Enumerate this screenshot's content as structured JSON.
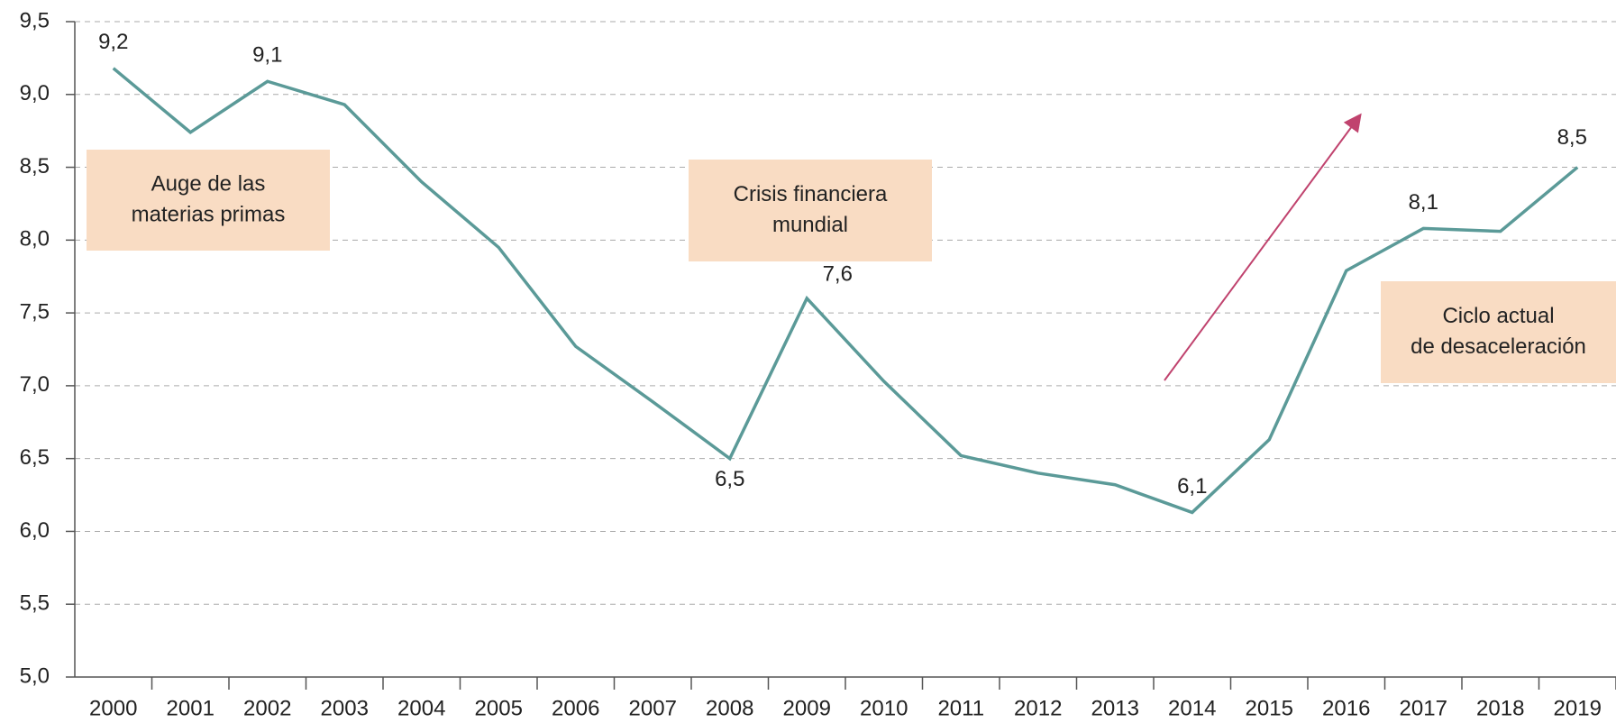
{
  "chart_data": {
    "type": "line",
    "categories": [
      "2000",
      "2001",
      "2002",
      "2003",
      "2004",
      "2005",
      "2006",
      "2007",
      "2008",
      "2009",
      "2010",
      "2011",
      "2012",
      "2013",
      "2014",
      "2015",
      "2016",
      "2017",
      "2018",
      "2019"
    ],
    "series": [
      {
        "color": "#5b9a98",
        "values": [
          9.18,
          8.74,
          9.09,
          8.93,
          8.4,
          7.95,
          7.27,
          6.89,
          6.5,
          7.6,
          7.03,
          6.52,
          6.4,
          6.32,
          6.13,
          6.63,
          7.79,
          8.08,
          8.06,
          8.5
        ],
        "value_labels": [
          "9,2",
          null,
          "9,1",
          null,
          null,
          null,
          null,
          null,
          "6,5",
          "7,6",
          null,
          null,
          null,
          null,
          "6,1",
          null,
          null,
          "8,1",
          null,
          "8,5"
        ]
      }
    ],
    "ylim": [
      5.0,
      9.5
    ],
    "yticks": [
      {
        "value": 5.0,
        "label": "5,0"
      },
      {
        "value": 5.5,
        "label": "5,5"
      },
      {
        "value": 6.0,
        "label": "6,0"
      },
      {
        "value": 6.5,
        "label": "6,5"
      },
      {
        "value": 7.0,
        "label": "7,0"
      },
      {
        "value": 7.5,
        "label": "7,5"
      },
      {
        "value": 8.0,
        "label": "8,0"
      },
      {
        "value": 8.5,
        "label": "8,5"
      },
      {
        "value": 9.0,
        "label": "9,0"
      },
      {
        "value": 9.5,
        "label": "9,5"
      }
    ],
    "grid": true,
    "annotations": [
      {
        "lines": [
          "Auge de las",
          "materias primas"
        ],
        "color": "#f9dcc3"
      },
      {
        "lines": [
          "Crisis financiera",
          "mundial"
        ],
        "color": "#f9dcc3"
      },
      {
        "lines": [
          "Ciclo actual",
          "de desaceleración"
        ],
        "color": "#f9dcc3"
      }
    ]
  }
}
